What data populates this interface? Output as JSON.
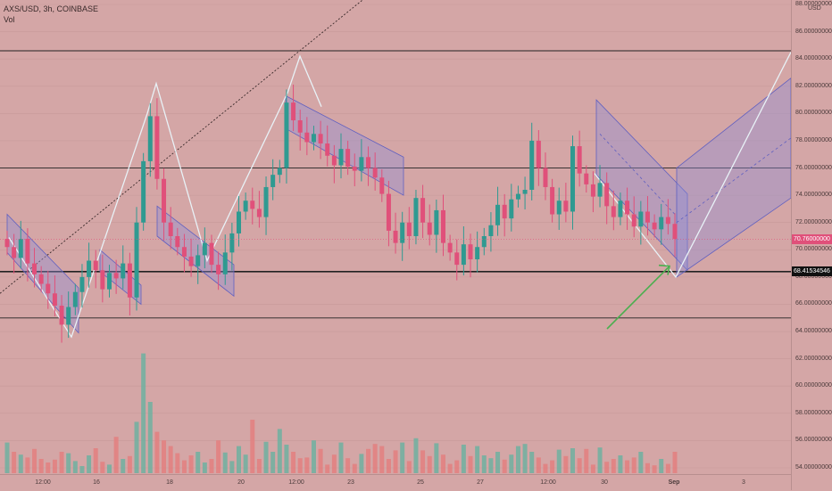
{
  "header": {
    "symbol": "AXS/USD, 3h, COINBASE",
    "volume_label": "Vol"
  },
  "price_axis": {
    "currency": "USD",
    "ticks": [
      "88.00000000",
      "86.00000000",
      "84.00000000",
      "82.00000000",
      "80.00000000",
      "78.00000000",
      "76.00000000",
      "74.00000000",
      "72.00000000",
      "70.00000000",
      "68.00000000",
      "66.00000000",
      "64.00000000",
      "62.00000000",
      "60.00000000",
      "58.00000000",
      "56.00000000",
      "54.00000000"
    ],
    "last_price": "70.76000000",
    "marked_price": "68.41534546"
  },
  "time_axis": {
    "ticks": [
      "12:00",
      "16",
      "18",
      "20",
      "12:00",
      "23",
      "25",
      "27",
      "12:00",
      "30",
      "Sep",
      "3"
    ]
  },
  "colors": {
    "background": "#d4a6a6",
    "up_candle": "#2f9a91",
    "down_candle": "#e0507a",
    "channel_fill": "#8f8fd6",
    "channel_stroke": "#5f5fc0",
    "zigzag": "#e8f2f7",
    "arrow": "#4caf50",
    "last_price_tag": "#e0507a",
    "marked_price_tag": "#111111"
  },
  "chart_data": {
    "type": "candlestick",
    "symbol": "AXS/USD",
    "timeframe": "3h",
    "exchange": "COINBASE",
    "ylim": [
      54,
      88
    ],
    "horizontal_levels": [
      84.6,
      76.0,
      68.4,
      65.0
    ],
    "closes": [
      70.2,
      69.4,
      70.8,
      69.0,
      68.2,
      67.5,
      66.8,
      65.9,
      64.5,
      65.8,
      66.9,
      68.0,
      69.2,
      68.5,
      67.1,
      68.3,
      67.9,
      69.0,
      66.5,
      72.0,
      76.5,
      79.8,
      75.2,
      72.0,
      71.0,
      70.2,
      69.5,
      68.8,
      69.6,
      70.5,
      68.9,
      68.2,
      69.8,
      71.2,
      72.8,
      73.6,
      73.0,
      72.4,
      74.6,
      75.5,
      76.0,
      80.8,
      79.5,
      78.6,
      77.9,
      78.5,
      77.8,
      76.9,
      76.2,
      77.4,
      76.1,
      75.8,
      76.8,
      76.0,
      75.3,
      74.1,
      71.4,
      70.5,
      72.0,
      71.0,
      73.8,
      72.0,
      71.1,
      72.9,
      70.5,
      69.8,
      68.9,
      70.4,
      69.3,
      70.2,
      71.0,
      71.8,
      73.3,
      72.3,
      73.7,
      74.1,
      74.4,
      78.0,
      76.0,
      74.6,
      72.6,
      73.6,
      72.8,
      77.6,
      75.6,
      74.8,
      73.9,
      74.9,
      73.2,
      72.4,
      73.6,
      72.6,
      71.7,
      72.8,
      72.0,
      71.5,
      72.4,
      71.9,
      70.8
    ],
    "volumes": [
      4.3,
      3.0,
      2.6,
      2.2,
      3.4,
      2.0,
      1.5,
      1.9,
      3.0,
      2.8,
      1.7,
      1.0,
      2.5,
      3.5,
      1.6,
      1.2,
      5.1,
      2.0,
      2.4,
      7.2,
      16.8,
      10.0,
      5.8,
      4.6,
      3.8,
      2.8,
      1.8,
      2.5,
      3.0,
      1.5,
      2.0,
      4.6,
      2.9,
      1.7,
      3.8,
      2.6,
      7.5,
      2.0,
      4.4,
      3.0,
      6.2,
      4.0,
      3.0,
      2.1,
      2.2,
      4.6,
      3.4,
      1.2,
      2.6,
      4.3,
      2.1,
      1.3,
      2.7,
      3.4,
      4.1,
      3.8,
      2.0,
      3.2,
      4.3,
      1.7,
      4.9,
      3.2,
      2.4,
      4.2,
      2.6,
      1.3,
      1.8,
      4.0,
      2.4,
      3.8,
      2.5,
      2.1,
      3.0,
      1.9,
      2.6,
      3.8,
      4.1,
      3.0,
      2.2,
      1.3,
      1.8,
      3.3,
      2.4,
      3.5,
      2.1,
      3.4,
      1.2,
      3.6,
      1.6,
      2.0,
      2.5,
      1.8,
      2.2,
      3.0,
      1.4,
      1.1,
      2.0,
      1.3,
      3.0
    ]
  }
}
